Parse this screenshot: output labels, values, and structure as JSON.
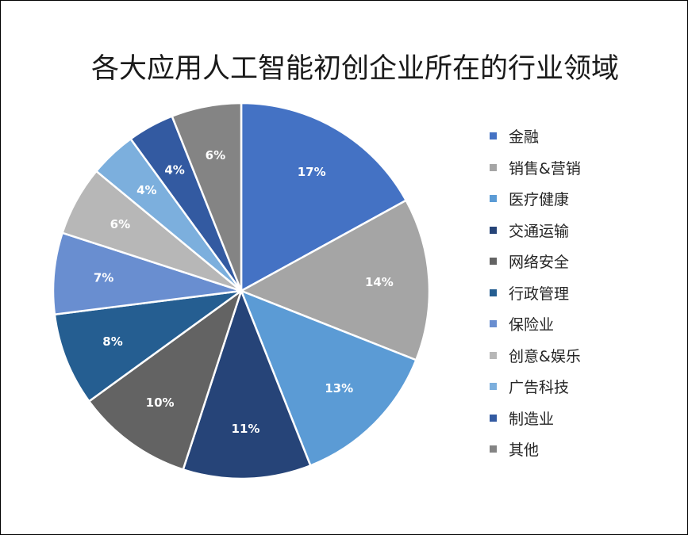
{
  "chart_data": {
    "type": "pie",
    "title": "各大应用人工智能初创企业所在的行业领域",
    "legend_position": "right",
    "slices": [
      {
        "label": "金融",
        "value": 17,
        "value_label": "17%",
        "color": "#4472C4"
      },
      {
        "label": "销售&营销",
        "value": 14,
        "value_label": "14%",
        "color": "#A5A5A5"
      },
      {
        "label": "医疗健康",
        "value": 13,
        "value_label": "13%",
        "color": "#5B9BD5"
      },
      {
        "label": "交通运输",
        "value": 11,
        "value_label": "11%",
        "color": "#264478"
      },
      {
        "label": "网络安全",
        "value": 10,
        "value_label": "10%",
        "color": "#636363"
      },
      {
        "label": "行政管理",
        "value": 8,
        "value_label": "8%",
        "color": "#255E91"
      },
      {
        "label": "保险业",
        "value": 7,
        "value_label": "7%",
        "color": "#698ED0"
      },
      {
        "label": "创意&娱乐",
        "value": 6,
        "value_label": "6%",
        "color": "#B7B7B7"
      },
      {
        "label": "广告科技",
        "value": 4,
        "value_label": "4%",
        "color": "#7CAFDD"
      },
      {
        "label": "制造业",
        "value": 4,
        "value_label": "4%",
        "color": "#335AA1"
      },
      {
        "label": "其他",
        "value": 6,
        "value_label": "6%",
        "color": "#848484"
      }
    ]
  }
}
